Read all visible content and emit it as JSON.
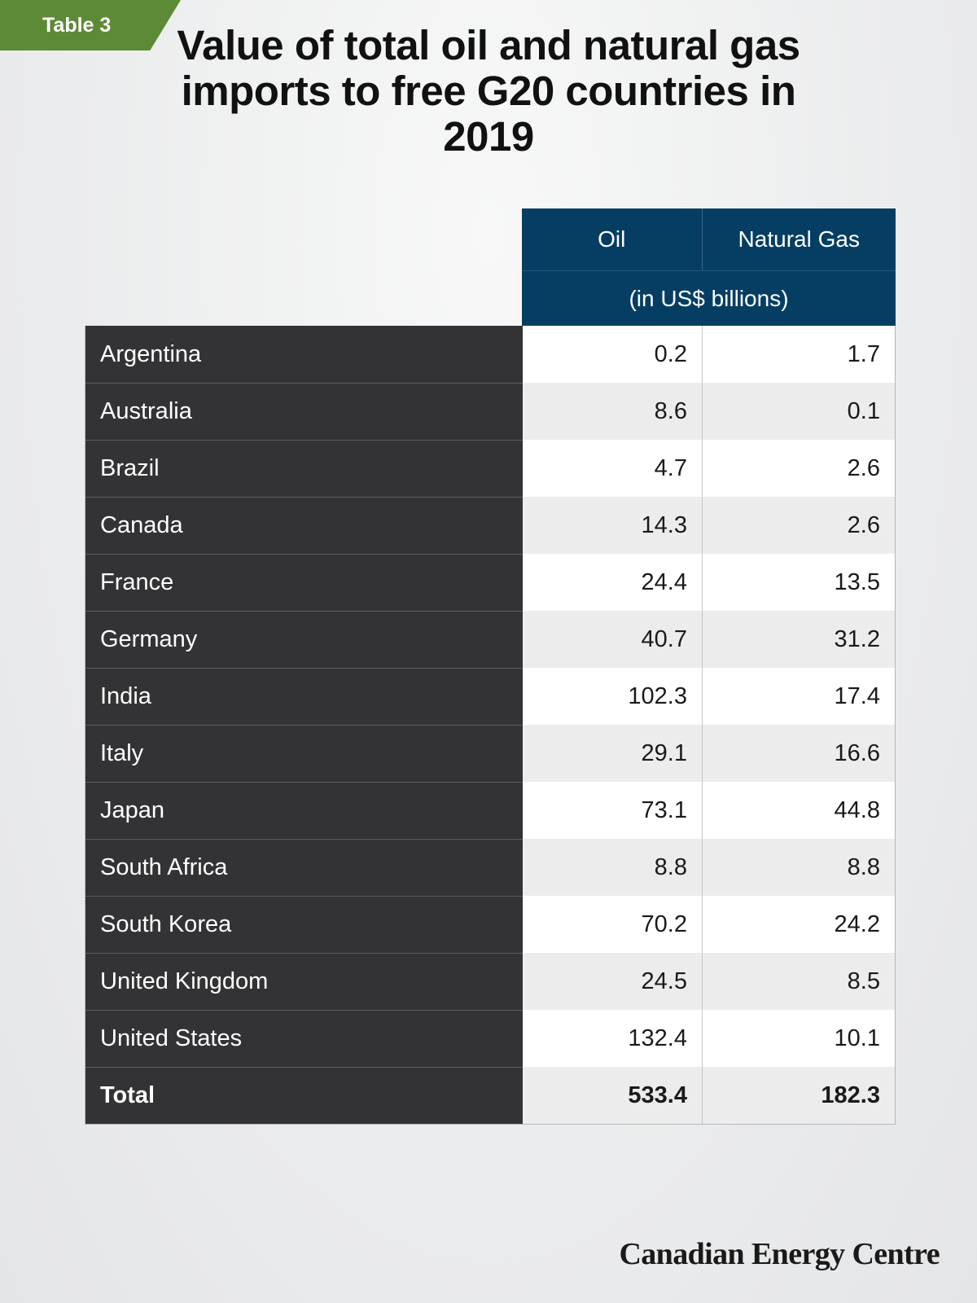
{
  "tag": "Table 3",
  "title": "Value of total oil and natural gas imports to free G20 countries in 2019",
  "header": {
    "oil": "Oil",
    "gas": "Natural Gas",
    "unit": "(in US$ billions)"
  },
  "rows": [
    {
      "country": "Argentina",
      "oil": "0.2",
      "gas": "1.7"
    },
    {
      "country": "Australia",
      "oil": "8.6",
      "gas": "0.1"
    },
    {
      "country": "Brazil",
      "oil": "4.7",
      "gas": "2.6"
    },
    {
      "country": "Canada",
      "oil": "14.3",
      "gas": "2.6"
    },
    {
      "country": "France",
      "oil": "24.4",
      "gas": "13.5"
    },
    {
      "country": "Germany",
      "oil": "40.7",
      "gas": "31.2"
    },
    {
      "country": "India",
      "oil": "102.3",
      "gas": "17.4"
    },
    {
      "country": "Italy",
      "oil": "29.1",
      "gas": "16.6"
    },
    {
      "country": "Japan",
      "oil": "73.1",
      "gas": "44.8"
    },
    {
      "country": "South Africa",
      "oil": "8.8",
      "gas": "8.8"
    },
    {
      "country": "South Korea",
      "oil": "70.2",
      "gas": "24.2"
    },
    {
      "country": "United Kingdom",
      "oil": "24.5",
      "gas": "8.5"
    },
    {
      "country": "United States",
      "oil": "132.4",
      "gas": "10.1"
    }
  ],
  "total": {
    "label": "Total",
    "oil": "533.4",
    "gas": "182.3"
  },
  "brand": "Canadian Energy Centre",
  "colors": {
    "tag": "#5d8a36",
    "header": "#063e63",
    "name_column": "#333335",
    "alt_row": "#ececec"
  },
  "chart_data": {
    "type": "table",
    "title": "Value of total oil and natural gas imports to free G20 countries in 2019",
    "columns": [
      "Oil",
      "Natural Gas"
    ],
    "unit": "(in US$ billions)",
    "categories": [
      "Argentina",
      "Australia",
      "Brazil",
      "Canada",
      "France",
      "Germany",
      "India",
      "Italy",
      "Japan",
      "South Africa",
      "South Korea",
      "United Kingdom",
      "United States"
    ],
    "series": [
      {
        "name": "Oil",
        "values": [
          0.2,
          8.6,
          4.7,
          14.3,
          24.4,
          40.7,
          102.3,
          29.1,
          73.1,
          8.8,
          70.2,
          24.5,
          132.4
        ]
      },
      {
        "name": "Natural Gas",
        "values": [
          1.7,
          0.1,
          2.6,
          2.6,
          13.5,
          31.2,
          17.4,
          16.6,
          44.8,
          8.8,
          24.2,
          8.5,
          10.1
        ]
      }
    ],
    "totals": {
      "Oil": 533.4,
      "Natural Gas": 182.3
    }
  }
}
